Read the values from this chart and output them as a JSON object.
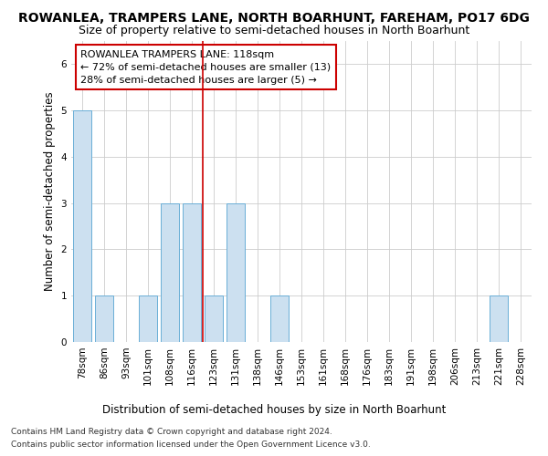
{
  "title1": "ROWANLEA, TRAMPERS LANE, NORTH BOARHUNT, FAREHAM, PO17 6DG",
  "title2": "Size of property relative to semi-detached houses in North Boarhunt",
  "xlabel": "Distribution of semi-detached houses by size in North Boarhunt",
  "ylabel": "Number of semi-detached properties",
  "categories": [
    "78sqm",
    "86sqm",
    "93sqm",
    "101sqm",
    "108sqm",
    "116sqm",
    "123sqm",
    "131sqm",
    "138sqm",
    "146sqm",
    "153sqm",
    "161sqm",
    "168sqm",
    "176sqm",
    "183sqm",
    "191sqm",
    "198sqm",
    "206sqm",
    "213sqm",
    "221sqm",
    "228sqm"
  ],
  "values": [
    5,
    1,
    0,
    1,
    3,
    3,
    1,
    3,
    0,
    1,
    0,
    0,
    0,
    0,
    0,
    0,
    0,
    0,
    0,
    1,
    0
  ],
  "bar_color": "#cce0f0",
  "bar_edge_color": "#6aaed6",
  "vline_x": 5.5,
  "vline_color": "#cc0000",
  "annotation_text_line1": "ROWANLEA TRAMPERS LANE: 118sqm",
  "annotation_text_line2": "← 72% of semi-detached houses are smaller (13)",
  "annotation_text_line3": "28% of semi-detached houses are larger (5) →",
  "ylim": [
    0,
    6.5
  ],
  "yticks": [
    0,
    1,
    2,
    3,
    4,
    5,
    6
  ],
  "footer_line1": "Contains HM Land Registry data © Crown copyright and database right 2024.",
  "footer_line2": "Contains public sector information licensed under the Open Government Licence v3.0.",
  "background_color": "#ffffff",
  "plot_background_color": "#ffffff",
  "title1_fontsize": 10,
  "title2_fontsize": 9,
  "xlabel_fontsize": 8.5,
  "ylabel_fontsize": 8.5,
  "tick_fontsize": 7.5,
  "footer_fontsize": 6.5,
  "annot_fontsize": 8
}
